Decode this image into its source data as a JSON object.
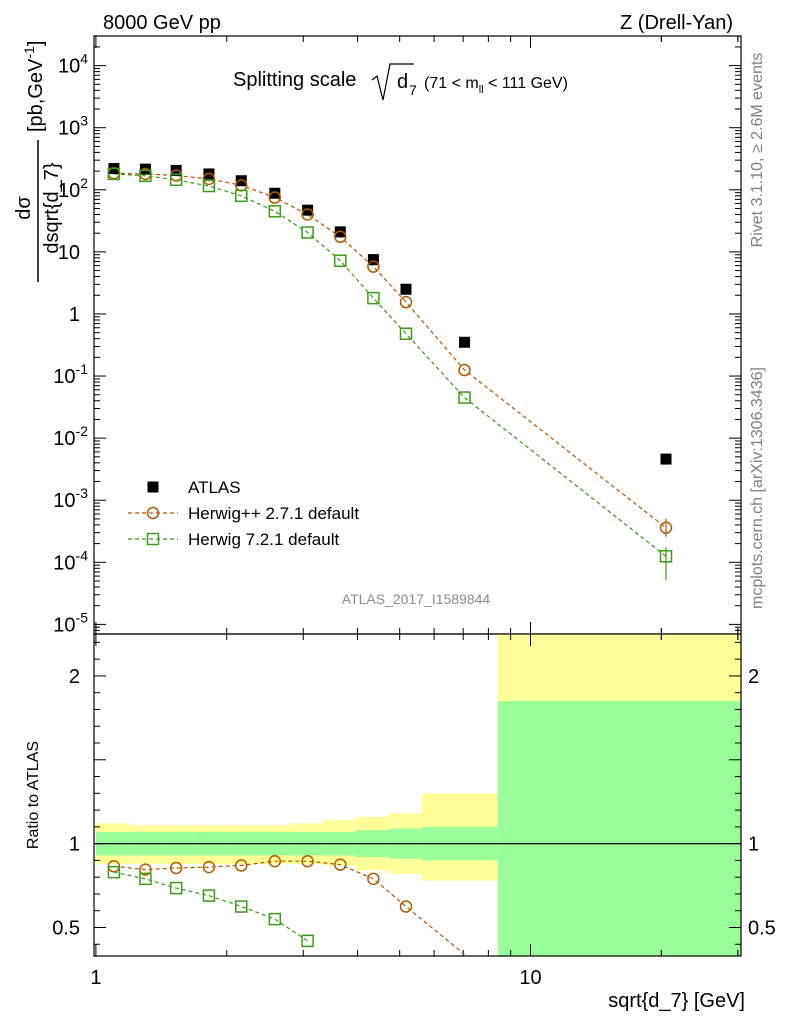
{
  "header": {
    "left": "8000 GeV pp",
    "right": "Z (Drell-Yan)"
  },
  "side_labels": {
    "rivet": "Rivet 3.1.10, ≥ 2.6M events",
    "mcplots": "mcplots.cern.ch [arXiv:1306.3436]"
  },
  "watermark": "ATLAS_2017_I1589844",
  "chart_data": [
    {
      "type": "scatter",
      "panel": "main",
      "title": "Splitting scale",
      "title_symbol": "d",
      "title_subscript": "7",
      "title_cut": "(71 < m",
      "title_cut_sub": "ll",
      "title_cut_end": " < 111 GeV)",
      "ylabel": "dσ / dsqrt{d_7} [pb,GeV⁻¹]",
      "ylabel_num": "dσ",
      "ylabel_den": "dsqrt{d_7}",
      "ylabel_unit": "[pb,GeV",
      "ylabel_unit_sup": "-1",
      "ylabel_unit_end": "]",
      "yscale": "log",
      "xscale": "log",
      "xlim": [
        0.99,
        30.5
      ],
      "ylim": [
        7e-06,
        30000
      ],
      "y_ticks": [
        {
          "v": 1e-05,
          "base": "10",
          "exp": "-5"
        },
        {
          "v": 0.0001,
          "base": "10",
          "exp": "-4"
        },
        {
          "v": 0.001,
          "base": "10",
          "exp": "-3"
        },
        {
          "v": 0.01,
          "base": "10",
          "exp": "-2"
        },
        {
          "v": 0.1,
          "base": "10",
          "exp": "-1"
        },
        {
          "v": 1,
          "base": "1",
          "exp": ""
        },
        {
          "v": 10,
          "base": "10",
          "exp": ""
        },
        {
          "v": 100,
          "base": "10",
          "exp": "2"
        },
        {
          "v": 1000,
          "base": "10",
          "exp": "3"
        },
        {
          "v": 10000,
          "base": "10",
          "exp": "4"
        }
      ],
      "legend_position": "bottom-left",
      "series": [
        {
          "name": "ATLAS",
          "marker": "filled-square",
          "color": "#000000",
          "x": [
            1.1,
            1.3,
            1.53,
            1.82,
            2.16,
            2.58,
            3.07,
            3.65,
            4.35,
            5.17,
            7.05,
            20.5
          ],
          "y": [
            220,
            215,
            205,
            180,
            140,
            88,
            47,
            21,
            7.5,
            2.5,
            0.35,
            0.0046
          ]
        },
        {
          "name": "Herwig++ 2.7.1 default",
          "marker": "open-circle",
          "color": "#b35900",
          "x": [
            1.1,
            1.3,
            1.53,
            1.82,
            2.16,
            2.58,
            3.07,
            3.65,
            4.35,
            5.17,
            7.05,
            20.5
          ],
          "y": [
            185,
            180,
            170,
            150,
            118,
            75,
            40,
            17.5,
            5.8,
            1.55,
            0.125,
            0.00036
          ]
        },
        {
          "name": "Herwig 7.2.1 default",
          "marker": "open-square",
          "color": "#3c9a1a",
          "x": [
            1.1,
            1.3,
            1.53,
            1.82,
            2.16,
            2.58,
            3.07,
            3.65,
            4.35,
            5.17,
            7.05,
            20.5
          ],
          "y": [
            180,
            168,
            145,
            115,
            80,
            45,
            20.5,
            7.2,
            1.8,
            0.48,
            0.045,
            0.000125
          ]
        }
      ]
    },
    {
      "type": "line",
      "panel": "ratio",
      "ylabel": "Ratio to ATLAS",
      "xlabel": "sqrt{d_7} [GeV]",
      "yscale": "linear",
      "xscale": "log",
      "xlim": [
        0.99,
        30.5
      ],
      "ylim": [
        0.33,
        2.25
      ],
      "y_ticks": [
        {
          "v": 0.5,
          "label": "0.5"
        },
        {
          "v": 1,
          "label": "1"
        },
        {
          "v": 2,
          "label": "2"
        }
      ],
      "x_ticks": [
        {
          "v": 1,
          "label": "1"
        },
        {
          "v": 10,
          "label": "10"
        }
      ],
      "bands": {
        "bin_edges": [
          1.0,
          1.2,
          1.42,
          1.68,
          2.0,
          2.36,
          2.8,
          3.33,
          3.96,
          4.72,
          5.62,
          8.41,
          31.6
        ],
        "yellow_lo": [
          0.88,
          0.88,
          0.88,
          0.88,
          0.88,
          0.88,
          0.88,
          0.87,
          0.84,
          0.82,
          0.78,
          0.33
        ],
        "yellow_hi": [
          1.12,
          1.11,
          1.11,
          1.11,
          1.11,
          1.11,
          1.12,
          1.14,
          1.16,
          1.18,
          1.3,
          2.25
        ],
        "green_lo": [
          0.93,
          0.93,
          0.93,
          0.93,
          0.93,
          0.93,
          0.93,
          0.93,
          0.92,
          0.91,
          0.9,
          0.33
        ],
        "green_hi": [
          1.07,
          1.07,
          1.07,
          1.07,
          1.07,
          1.07,
          1.07,
          1.07,
          1.08,
          1.09,
          1.1,
          1.85
        ]
      },
      "series": [
        {
          "name": "Herwig++ 2.7.1 default",
          "marker": "open-circle",
          "color": "#b35900",
          "x": [
            1.1,
            1.3,
            1.53,
            1.82,
            2.16,
            2.58,
            3.07,
            3.65,
            4.35,
            5.17,
            7.05
          ],
          "y": [
            0.865,
            0.845,
            0.855,
            0.86,
            0.87,
            0.895,
            0.895,
            0.875,
            0.79,
            0.625,
            0.34
          ]
        },
        {
          "name": "Herwig 7.2.1 default",
          "marker": "open-square",
          "color": "#3c9a1a",
          "x": [
            1.1,
            1.3,
            1.53,
            1.82,
            2.16,
            2.58,
            3.07
          ],
          "y": [
            0.83,
            0.79,
            0.735,
            0.69,
            0.625,
            0.55,
            0.42
          ]
        }
      ]
    }
  ]
}
